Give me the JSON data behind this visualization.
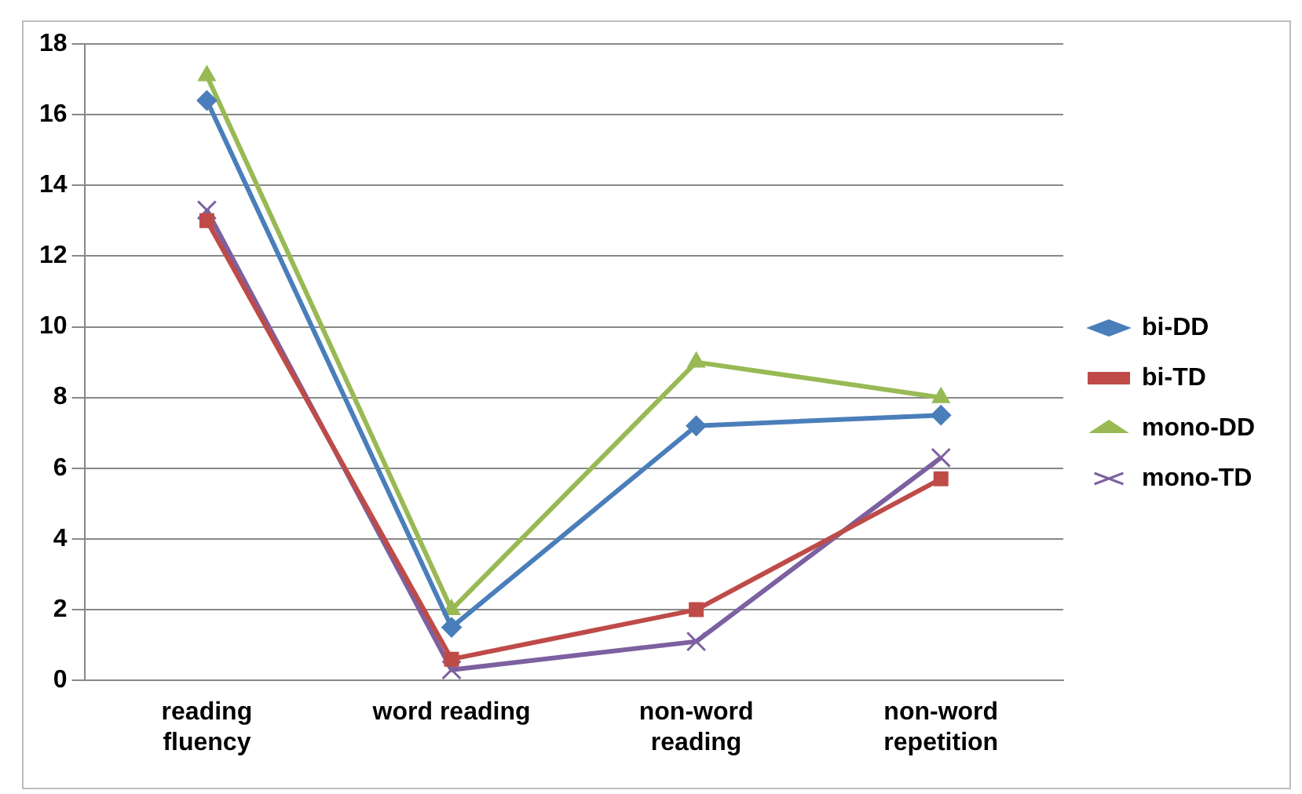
{
  "chart_data": {
    "type": "line",
    "categories": [
      "reading fluency",
      "word reading",
      "non-word reading",
      "non-word repetition"
    ],
    "series": [
      {
        "name": "bi-DD",
        "color": "#4a7ebb",
        "marker": "diamond",
        "values": [
          16.4,
          1.5,
          7.2,
          7.5
        ]
      },
      {
        "name": "bi-TD",
        "color": "#be4b48",
        "marker": "square",
        "values": [
          13.0,
          0.6,
          2.0,
          5.7
        ]
      },
      {
        "name": "mono-DD",
        "color": "#98b954",
        "marker": "triangle",
        "values": [
          17.1,
          2.0,
          9.0,
          8.0
        ]
      },
      {
        "name": "mono-TD",
        "color": "#7d60a0",
        "marker": "cross",
        "values": [
          13.3,
          0.3,
          1.1,
          6.3
        ]
      }
    ],
    "ylim": [
      0,
      18
    ],
    "yticks": [
      0,
      2,
      4,
      6,
      8,
      10,
      12,
      14,
      16,
      18
    ],
    "grid": "y",
    "legend": "right"
  }
}
